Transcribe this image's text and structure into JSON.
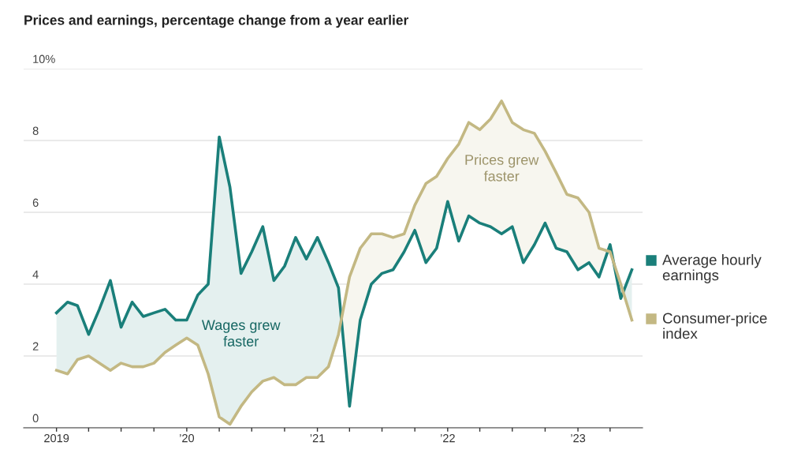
{
  "chart_data": {
    "type": "line",
    "title": "Prices and earnings, percentage change from a year earlier",
    "x": [
      "2019-01",
      "2019-02",
      "2019-03",
      "2019-04",
      "2019-05",
      "2019-06",
      "2019-07",
      "2019-08",
      "2019-09",
      "2019-10",
      "2019-11",
      "2019-12",
      "2020-01",
      "2020-02",
      "2020-03",
      "2020-04",
      "2020-05",
      "2020-06",
      "2020-07",
      "2020-08",
      "2020-09",
      "2020-10",
      "2020-11",
      "2020-12",
      "2021-01",
      "2021-02",
      "2021-03",
      "2021-04",
      "2021-05",
      "2021-06",
      "2021-07",
      "2021-08",
      "2021-09",
      "2021-10",
      "2021-11",
      "2021-12",
      "2022-01",
      "2022-02",
      "2022-03",
      "2022-04",
      "2022-05",
      "2022-06",
      "2022-07",
      "2022-08",
      "2022-09",
      "2022-10",
      "2022-11",
      "2022-12",
      "2023-01",
      "2023-02",
      "2023-03",
      "2023-04",
      "2023-05",
      "2023-06"
    ],
    "series": [
      {
        "name": "Average hourly earnings",
        "color": "#1a7f7a",
        "values": [
          3.2,
          3.5,
          3.4,
          2.6,
          3.3,
          4.1,
          2.8,
          3.5,
          3.1,
          3.2,
          3.3,
          3.0,
          3.0,
          3.7,
          4.0,
          8.1,
          6.7,
          4.3,
          4.9,
          5.6,
          4.1,
          4.5,
          5.3,
          4.7,
          5.3,
          4.6,
          3.9,
          0.6,
          3.0,
          4.0,
          4.3,
          4.4,
          4.9,
          5.5,
          4.6,
          5.0,
          6.3,
          5.2,
          5.9,
          5.7,
          5.6,
          5.4,
          5.6,
          4.6,
          5.1,
          5.7,
          5.0,
          4.9,
          4.4,
          4.6,
          4.2,
          5.1,
          3.6,
          4.4
        ]
      },
      {
        "name": "Consumer-price index",
        "color": "#c3b883",
        "values": [
          1.6,
          1.5,
          1.9,
          2.0,
          1.8,
          1.6,
          1.8,
          1.7,
          1.7,
          1.8,
          2.1,
          2.3,
          2.5,
          2.3,
          1.5,
          0.3,
          0.1,
          0.6,
          1.0,
          1.3,
          1.4,
          1.2,
          1.2,
          1.4,
          1.4,
          1.7,
          2.6,
          4.2,
          5.0,
          5.4,
          5.4,
          5.3,
          5.4,
          6.2,
          6.8,
          7.0,
          7.5,
          7.9,
          8.5,
          8.3,
          8.6,
          9.1,
          8.5,
          8.3,
          8.2,
          7.7,
          7.1,
          6.5,
          6.4,
          6.0,
          5.0,
          4.9,
          4.0,
          3.0
        ]
      }
    ],
    "annotations": [
      "Wages grew faster",
      "Prices grew faster"
    ],
    "xlim": [
      "2018-10",
      "2023-07"
    ],
    "xticks": [
      {
        "value": "2019-01",
        "label": "2019"
      },
      {
        "value": "2019-04",
        "label": null
      },
      {
        "value": "2019-07",
        "label": null
      },
      {
        "value": "2019-10",
        "label": null
      },
      {
        "value": "2020-01",
        "label": "’20"
      },
      {
        "value": "2020-04",
        "label": null
      },
      {
        "value": "2020-07",
        "label": null
      },
      {
        "value": "2020-10",
        "label": null
      },
      {
        "value": "2021-01",
        "label": "’21"
      },
      {
        "value": "2021-04",
        "label": null
      },
      {
        "value": "2021-07",
        "label": null
      },
      {
        "value": "2021-10",
        "label": null
      },
      {
        "value": "2022-01",
        "label": "’22"
      },
      {
        "value": "2022-04",
        "label": null
      },
      {
        "value": "2022-07",
        "label": null
      },
      {
        "value": "2022-10",
        "label": null
      },
      {
        "value": "2023-01",
        "label": "’23"
      },
      {
        "value": "2023-04",
        "label": null
      }
    ],
    "ylim": [
      0,
      10
    ],
    "yticks": [
      0,
      2,
      4,
      6,
      8,
      {
        "value": 10,
        "label": "10%"
      }
    ],
    "grid": "y",
    "legend": "right",
    "marker": "none",
    "line_style": "solid"
  }
}
